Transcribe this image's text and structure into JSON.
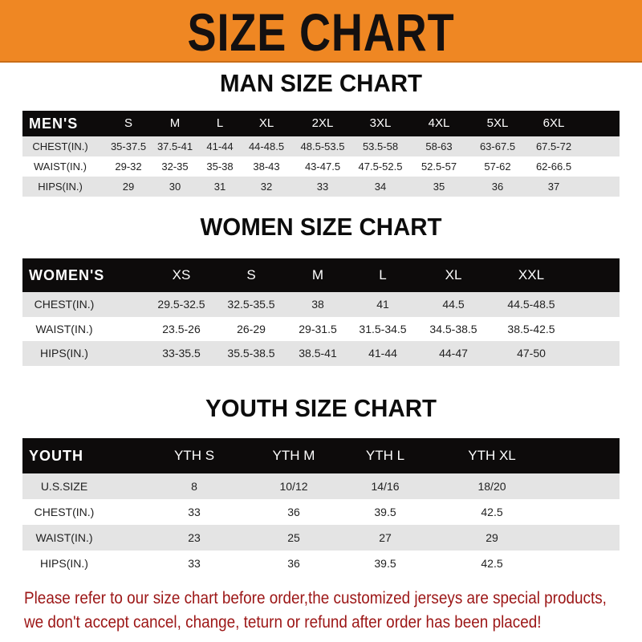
{
  "banner": {
    "title": "SIZE CHART",
    "color": "#ef8723"
  },
  "men": {
    "title": "MAN SIZE CHART",
    "header": [
      "MEN'S",
      "S",
      "M",
      "L",
      "XL",
      "2XL",
      "3XL",
      "4XL",
      "5XL",
      "6XL"
    ],
    "rows": [
      [
        "CHEST(IN.)",
        "35-37.5",
        "37.5-41",
        "41-44",
        "44-48.5",
        "48.5-53.5",
        "53.5-58",
        "58-63",
        "63-67.5",
        "67.5-72"
      ],
      [
        "WAIST(IN.)",
        "29-32",
        "32-35",
        "35-38",
        "38-43",
        "43-47.5",
        "47.5-52.5",
        "52.5-57",
        "57-62",
        "62-66.5"
      ],
      [
        "HIPS(IN.)",
        "29",
        "30",
        "31",
        "32",
        "33",
        "34",
        "35",
        "36",
        "37"
      ]
    ]
  },
  "women": {
    "title": "WOMEN SIZE CHART",
    "header": [
      "WOMEN'S",
      "XS",
      "S",
      "M",
      "L",
      "XL",
      "XXL"
    ],
    "rows": [
      [
        "CHEST(IN.)",
        "29.5-32.5",
        "32.5-35.5",
        "38",
        "41",
        "44.5",
        "44.5-48.5"
      ],
      [
        "WAIST(IN.)",
        "23.5-26",
        "26-29",
        "29-31.5",
        "31.5-34.5",
        "34.5-38.5",
        "38.5-42.5"
      ],
      [
        "HIPS(IN.)",
        "33-35.5",
        "35.5-38.5",
        "38.5-41",
        "41-44",
        "44-47",
        "47-50"
      ]
    ]
  },
  "youth": {
    "title": "YOUTH SIZE CHART",
    "header": [
      "YOUTH",
      "YTH S",
      "YTH M",
      "YTH L",
      "YTH XL"
    ],
    "rows": [
      [
        "U.S.SIZE",
        "8",
        "10/12",
        "14/16",
        "18/20"
      ],
      [
        "CHEST(IN.)",
        "33",
        "36",
        "39.5",
        "42.5"
      ],
      [
        "WAIST(IN.)",
        "23",
        "25",
        "27",
        "29"
      ],
      [
        "HIPS(IN.)",
        "33",
        "36",
        "39.5",
        "42.5"
      ]
    ]
  },
  "note": {
    "line1": "Please refer to our size chart before order,the customized jerseys are special products,",
    "line2": "we don't accept cancel, change, teturn or refund after order has been placed!",
    "color": "#9c1616"
  }
}
